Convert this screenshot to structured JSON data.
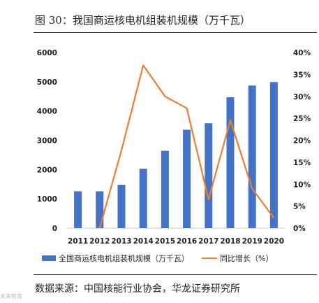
{
  "figure_title": "图 30：我国商运核电机组装机规模（万千瓦）",
  "source_text": "数据来源：中国核能行业协会，华龙证券研究所",
  "watermark_text": "未来智库",
  "colors": {
    "bar": "#4472c4",
    "line": "#ed7d31",
    "axis": "#c8c8c8"
  },
  "chart_data": {
    "type": "bar",
    "categories": [
      "2011",
      "2012",
      "2013",
      "2014",
      "2015",
      "2016",
      "2017",
      "2018",
      "2019",
      "2020"
    ],
    "series": [
      {
        "name": "全国商运核电机组装机规模（万千瓦）",
        "type": "bar",
        "axis": "left",
        "values": [
          1257,
          1257,
          1480,
          2030,
          2640,
          3360,
          3580,
          4470,
          4870,
          4990
        ]
      },
      {
        "name": "同比增长（%）",
        "type": "line",
        "axis": "right",
        "values": [
          null,
          0.0,
          17.7,
          37.1,
          30.0,
          27.3,
          6.5,
          24.6,
          9.0,
          2.3
        ]
      }
    ],
    "y_left": {
      "lim": [
        0,
        6000
      ],
      "ticks": [
        "0",
        "1000",
        "2000",
        "3000",
        "4000",
        "5000",
        "6000"
      ]
    },
    "y_right": {
      "lim": [
        0,
        40
      ],
      "ticks": [
        "0%",
        "5%",
        "10%",
        "15%",
        "20%",
        "25%",
        "30%",
        "35%",
        "40%"
      ]
    },
    "legend_position": "bottom",
    "grid": false
  }
}
